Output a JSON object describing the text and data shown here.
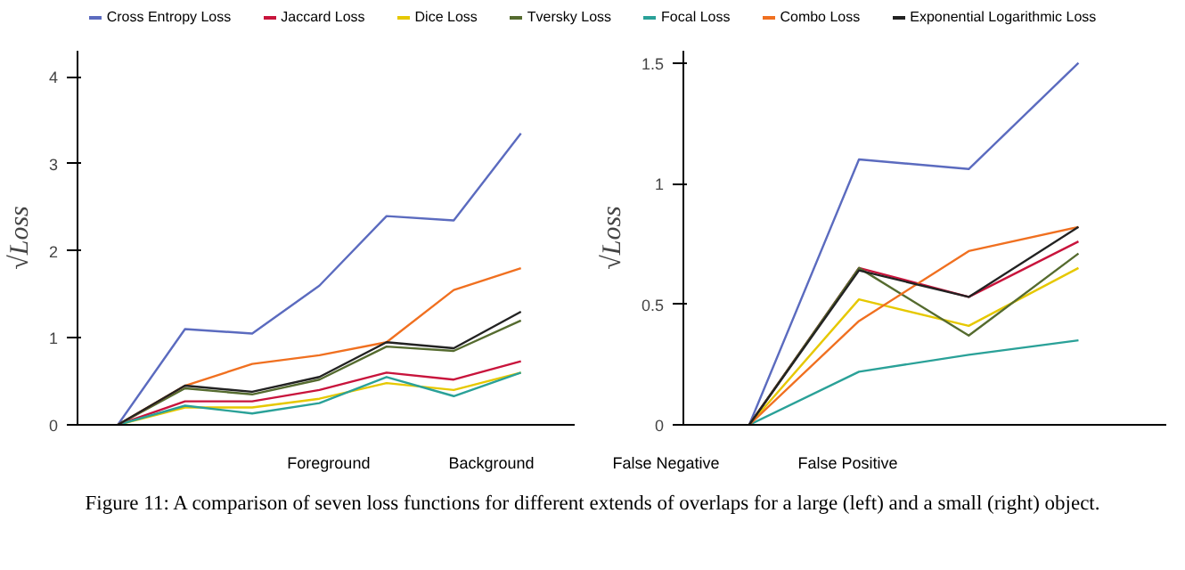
{
  "chart_data": [
    {
      "type": "line",
      "ylabel": "√Loss",
      "categories": [
        null,
        null,
        null,
        null,
        null,
        null,
        null
      ],
      "ylim": [
        0,
        4.3
      ],
      "yticks": [
        0,
        1,
        2,
        3,
        4
      ],
      "tick_labels": "y",
      "legend": "top",
      "series": [
        {
          "name": "Cross Entropy Loss",
          "color": "#5b6bbf",
          "values": [
            0,
            1.1,
            1.05,
            1.6,
            2.4,
            2.35,
            3.35
          ]
        },
        {
          "name": "Jaccard Loss",
          "color": "#c8143c",
          "values": [
            0,
            0.27,
            0.27,
            0.4,
            0.6,
            0.52,
            0.73
          ]
        },
        {
          "name": "Dice Loss",
          "color": "#e6c800",
          "values": [
            0,
            0.2,
            0.2,
            0.3,
            0.48,
            0.4,
            0.6
          ]
        },
        {
          "name": "Tversky Loss",
          "color": "#556b2f",
          "values": [
            0,
            0.42,
            0.35,
            0.52,
            0.9,
            0.85,
            1.2
          ]
        },
        {
          "name": "Focal Loss",
          "color": "#2aa198",
          "values": [
            0,
            0.22,
            0.13,
            0.25,
            0.55,
            0.33,
            0.6
          ]
        },
        {
          "name": "Combo Loss",
          "color": "#f07020",
          "values": [
            0,
            0.45,
            0.7,
            0.8,
            0.95,
            1.55,
            1.8
          ]
        },
        {
          "name": "Exponential Logarithmic Loss",
          "color": "#222222",
          "values": [
            0,
            0.45,
            0.38,
            0.55,
            0.95,
            0.88,
            1.3
          ]
        }
      ],
      "annotations": [
        "Foreground",
        "Background",
        "False Negative",
        "False Positive",
        "Figure 11: A comparison of seven loss functions for different extends of overlaps for a large (left) and a small (right) object."
      ]
    },
    {
      "type": "line",
      "ylabel": "√Loss",
      "categories": [
        null,
        null,
        null,
        null
      ],
      "ylim": [
        0,
        1.55
      ],
      "yticks": [
        0,
        0.5,
        1,
        1.5
      ],
      "tick_labels": "y",
      "series": [
        {
          "color": "#5b6bbf",
          "values": [
            0,
            1.1,
            1.06,
            1.5
          ]
        },
        {
          "color": "#c8143c",
          "values": [
            0,
            0.65,
            0.53,
            0.76
          ]
        },
        {
          "color": "#e6c800",
          "values": [
            0,
            0.52,
            0.41,
            0.65
          ]
        },
        {
          "color": "#556b2f",
          "values": [
            0,
            0.65,
            0.37,
            0.71
          ]
        },
        {
          "color": "#2aa198",
          "values": [
            0,
            0.22,
            0.29,
            0.35
          ]
        },
        {
          "color": "#f07020",
          "values": [
            0,
            0.43,
            0.72,
            0.82
          ]
        },
        {
          "color": "#222222",
          "values": [
            0,
            0.64,
            0.53,
            0.82
          ]
        }
      ]
    }
  ]
}
